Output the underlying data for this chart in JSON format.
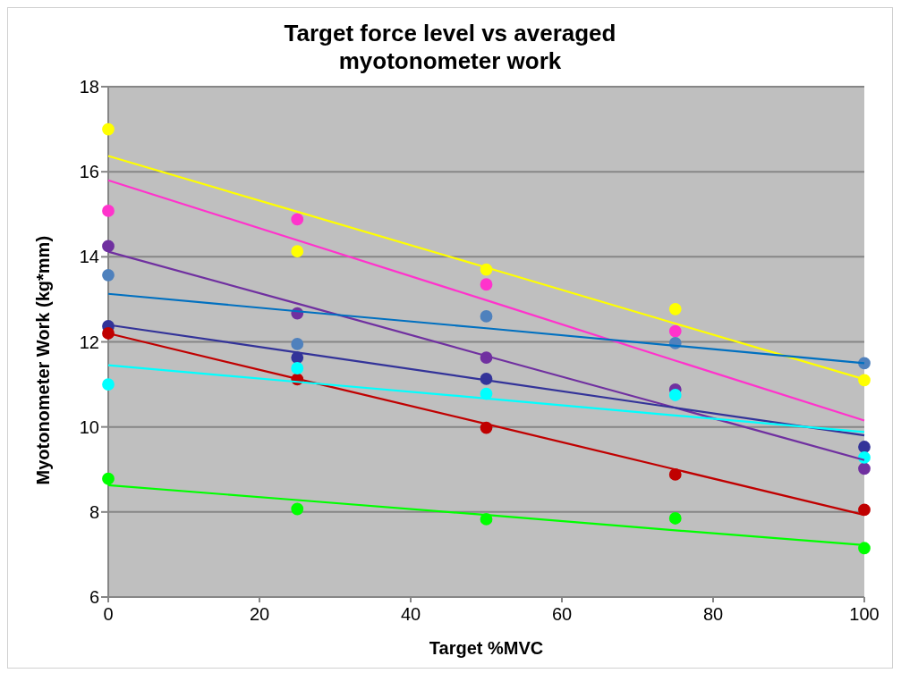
{
  "chart_data": {
    "type": "scatter",
    "title": "Target force level vs averaged myotonometer work",
    "xlabel": "Target %MVC",
    "ylabel": "Myotonometer Work  (kg*mm)",
    "x": [
      0,
      25,
      50,
      75,
      100
    ],
    "xlim": [
      0,
      100
    ],
    "xticks": [
      0,
      20,
      40,
      60,
      80,
      100
    ],
    "ylim": [
      6,
      18
    ],
    "yticks": [
      6,
      8,
      10,
      12,
      14,
      16,
      18
    ],
    "grid": "y",
    "marker": "circle",
    "series": [
      {
        "color": "#ffff00",
        "values": [
          17.0,
          14.13,
          13.7,
          12.77,
          11.1
        ]
      },
      {
        "color": "#ff33cc",
        "values": [
          15.08,
          14.88,
          13.35,
          12.25,
          null
        ]
      },
      {
        "color": "#7030a0",
        "values": [
          14.25,
          12.67,
          11.63,
          10.88,
          9.02
        ]
      },
      {
        "color": "#4f81bd",
        "values": [
          13.57,
          11.95,
          12.6,
          11.97,
          11.5
        ]
      },
      {
        "color": "#333399",
        "values": [
          12.37,
          11.63,
          11.13,
          null,
          9.53
        ]
      },
      {
        "color": "#c00000",
        "values": [
          12.2,
          11.12,
          9.98,
          8.88,
          8.05
        ]
      },
      {
        "color": "#00ffff",
        "values": [
          11.0,
          11.38,
          10.78,
          10.75,
          9.28
        ]
      },
      {
        "color": "#00ff00",
        "values": [
          8.78,
          8.07,
          7.83,
          7.85,
          7.15
        ]
      },
      {
        "type": "line",
        "marker": "none",
        "color": "#ffff00",
        "values": [
          16.37,
          15.06,
          13.75,
          12.43,
          11.12
        ]
      },
      {
        "type": "line",
        "marker": "none",
        "color": "#ff33cc",
        "values": [
          15.8,
          14.39,
          12.98,
          11.56,
          10.15
        ]
      },
      {
        "type": "line",
        "marker": "none",
        "color": "#7030a0",
        "values": [
          14.12,
          12.9,
          11.67,
          10.45,
          9.22
        ]
      },
      {
        "type": "line",
        "marker": "none",
        "color": "#0070c0",
        "values": [
          13.13,
          12.72,
          12.32,
          11.91,
          11.5
        ]
      },
      {
        "type": "line",
        "marker": "none",
        "color": "#333399",
        "values": [
          12.4,
          11.75,
          11.1,
          10.45,
          9.8
        ]
      },
      {
        "type": "line",
        "marker": "none",
        "color": "#c00000",
        "values": [
          12.2,
          11.13,
          10.07,
          9.0,
          7.93
        ]
      },
      {
        "type": "line",
        "marker": "none",
        "color": "#00ffff",
        "values": [
          11.45,
          11.06,
          10.67,
          10.27,
          9.88
        ]
      },
      {
        "type": "line",
        "marker": "none",
        "color": "#00ff00",
        "values": [
          8.63,
          8.28,
          7.93,
          7.57,
          7.22
        ]
      }
    ]
  }
}
